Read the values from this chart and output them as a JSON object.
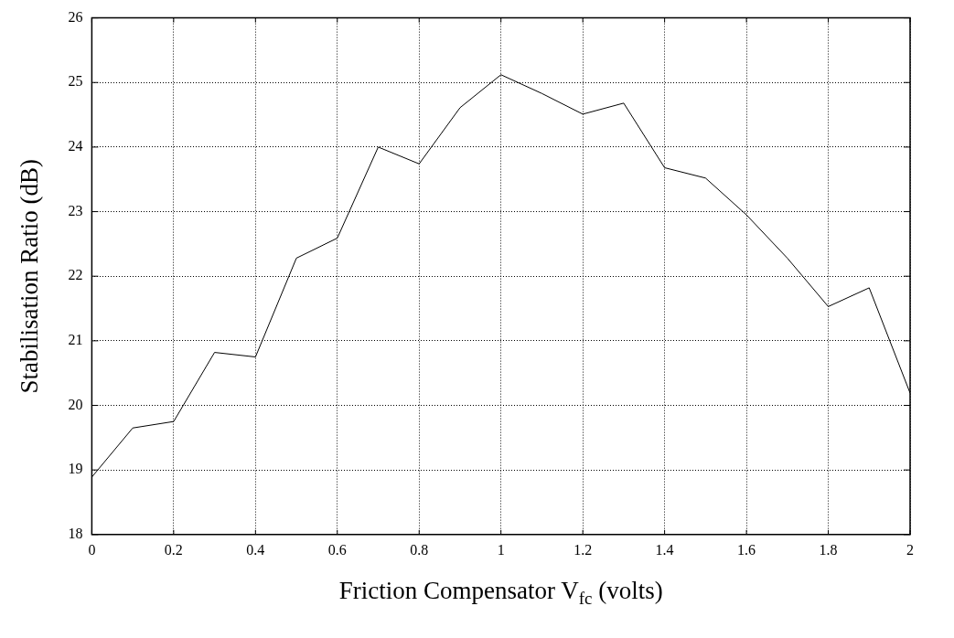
{
  "chart_data": {
    "type": "line",
    "xlabel": "Friction Compensator V$_{fc}$ (volts)",
    "ylabel": "Stabilisation Ratio (dB)",
    "x": [
      0,
      0.1,
      0.2,
      0.3,
      0.4,
      0.5,
      0.6,
      0.7,
      0.8,
      0.9,
      1,
      1.1,
      1.2,
      1.3,
      1.4,
      1.5,
      1.6,
      1.7,
      1.8,
      1.9,
      2
    ],
    "series": [
      {
        "color": "#000000",
        "values": [
          18.89,
          19.65,
          19.75,
          20.82,
          20.75,
          22.28,
          22.59,
          24.0,
          23.74,
          24.61,
          25.12,
          24.83,
          24.51,
          24.68,
          23.68,
          23.52,
          22.95,
          22.28,
          21.53,
          21.82,
          20.19
        ]
      }
    ],
    "xlim": [
      0,
      2
    ],
    "ylim": [
      18,
      26
    ],
    "xticks": [
      0,
      0.2,
      0.4,
      0.6,
      0.8,
      1,
      1.2,
      1.4,
      1.6,
      1.8,
      2
    ],
    "yticks": [
      18,
      19,
      20,
      21,
      22,
      23,
      24,
      25,
      26
    ],
    "grid": true,
    "legend": false,
    "marker": "none",
    "line_style": "solid"
  }
}
